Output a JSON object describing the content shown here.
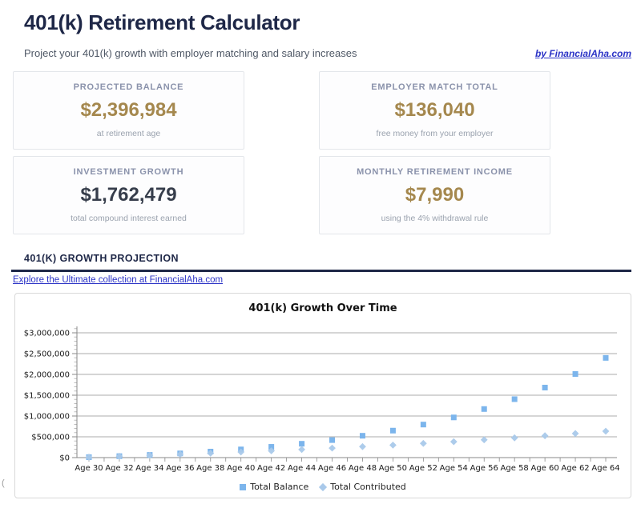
{
  "page": {
    "title": "401(k) Retirement Calculator",
    "subtitle": "Project your 401(k) growth with employer matching and salary increases",
    "byline_label": "by FinancialAha.com",
    "footer_link_label": "Explore the Ultimate collection at FinancialAha.com",
    "stray_character": "("
  },
  "stats": {
    "cards": [
      {
        "label": "PROJECTED BALANCE",
        "value": "$2,396,984",
        "caption": "at retirement age",
        "emphasis": "gold"
      },
      {
        "label": "EMPLOYER MATCH TOTAL",
        "value": "$136,040",
        "caption": "free money from your employer",
        "emphasis": "gold"
      },
      {
        "label": "INVESTMENT GROWTH",
        "value": "$1,762,479",
        "caption": "total compound interest earned",
        "emphasis": "dark"
      },
      {
        "label": "MONTHLY RETIREMENT INCOME",
        "value": "$7,990",
        "caption": "using the 4% withdrawal rule",
        "emphasis": "gold"
      }
    ]
  },
  "section": {
    "title": "401(K) GROWTH PROJECTION"
  },
  "chart_data": {
    "type": "scatter",
    "title": "401(k) Growth Over Time",
    "categories": [
      "Age 30",
      "Age 32",
      "Age 34",
      "Age 36",
      "Age 38",
      "Age 40",
      "Age 42",
      "Age 44",
      "Age 46",
      "Age 48",
      "Age 50",
      "Age 52",
      "Age 54",
      "Age 56",
      "Age 58",
      "Age 60",
      "Age 62",
      "Age 64"
    ],
    "point_interval_years": 2,
    "series": [
      {
        "name": "Total Balance",
        "marker": "square",
        "color": "#7cb5ec",
        "values": [
          10500,
          34983,
          64796,
          100882,
          144340,
          196452,
          258713,
          332864,
          420933,
          525281,
          648657,
          794261,
          965815,
          1167650,
          1404804,
          1683134,
          2009453,
          2396984
        ]
      },
      {
        "name": "Total Contributed",
        "marker": "diamond",
        "color": "#a9c9ea",
        "values": [
          10500,
          32455,
          55746,
          80456,
          106671,
          134482,
          163987,
          195288,
          228497,
          263727,
          301103,
          340755,
          382822,
          427451,
          474798,
          525028,
          578317,
          634505
        ]
      }
    ],
    "ylim": [
      0,
      3000000
    ],
    "y_tick_step": 500000,
    "y_minor_tick_step": 100000,
    "y_tick_labels": [
      "$0",
      "$500,000",
      "$1,000,000",
      "$1,500,000",
      "$2,000,000",
      "$2,500,000",
      "$3,000,000"
    ],
    "grid": true,
    "legend_position": "bottom"
  },
  "colors": {
    "navy": "#1e2747",
    "gold": "#a5884e",
    "dark_value": "#363d4b",
    "link": "#2b33c6",
    "label_gray": "#8a92ab",
    "caption_gray": "#9aa2ae",
    "subtitle_gray": "#4f5866",
    "gridline": "#ababab",
    "axis": "#8a8a8a"
  }
}
